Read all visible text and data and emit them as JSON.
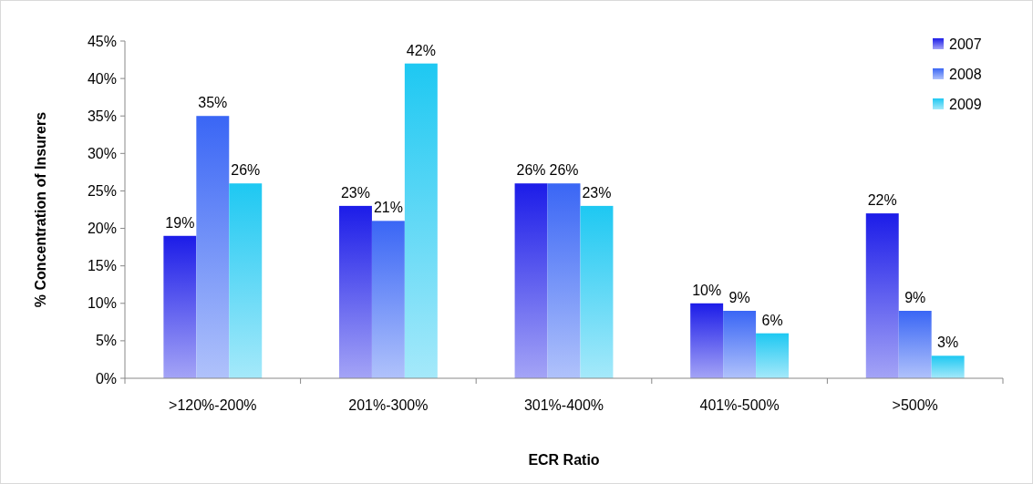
{
  "chart_data": {
    "type": "bar",
    "xlabel": "ECR Ratio",
    "ylabel": "% Concentration of Insurers",
    "categories": [
      ">120%-200%",
      "201%-300%",
      "301%-400%",
      "401%-500%",
      ">500%"
    ],
    "series": [
      {
        "name": "2007",
        "color": "#1c1ce8",
        "values": [
          19,
          23,
          26,
          10,
          22
        ],
        "value_labels": [
          "19%",
          "23%",
          "26%",
          "10%",
          "22%"
        ]
      },
      {
        "name": "2008",
        "color": "#3a66f5",
        "values": [
          35,
          21,
          26,
          9,
          9
        ],
        "value_labels": [
          "35%",
          "21%",
          "26%",
          "9%",
          "9%"
        ]
      },
      {
        "name": "2009",
        "color": "#1ec8f2",
        "values": [
          26,
          42,
          23,
          6,
          3
        ],
        "value_labels": [
          "26%",
          "42%",
          "23%",
          "6%",
          "3%"
        ]
      }
    ],
    "ylim": [
      0,
      45
    ],
    "yticks": [
      {
        "value": 0,
        "label": "0%"
      },
      {
        "value": 5,
        "label": "5%"
      },
      {
        "value": 10,
        "label": "10%"
      },
      {
        "value": 15,
        "label": "15%"
      },
      {
        "value": 20,
        "label": "20%"
      },
      {
        "value": 25,
        "label": "25%"
      },
      {
        "value": 30,
        "label": "30%"
      },
      {
        "value": 35,
        "label": "35%"
      },
      {
        "value": 40,
        "label": "40%"
      },
      {
        "value": 45,
        "label": "45%"
      }
    ],
    "legend": "top right",
    "grid": false
  }
}
